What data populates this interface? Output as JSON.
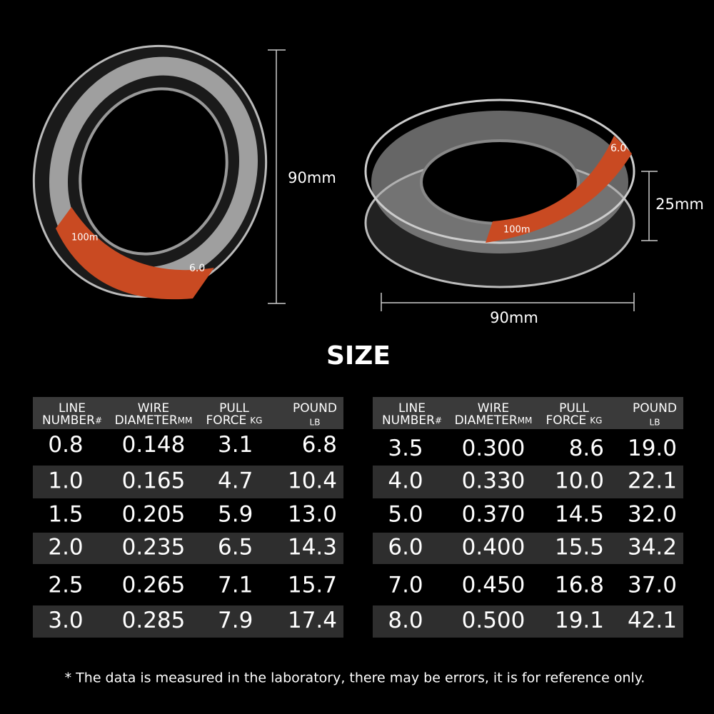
{
  "spools": [
    {
      "length": "100m",
      "number": "6.0"
    },
    {
      "length": "100m",
      "number": "6.0"
    }
  ],
  "dimensions": {
    "left_height": "90mm",
    "right_height": "25mm",
    "right_width": "90mm"
  },
  "title": "SIZE",
  "header": [
    {
      "top": "LINE",
      "bottom": "NUMBER",
      "unit": "#"
    },
    {
      "top": "WIRE",
      "bottom": "DIAMETER",
      "unit": "MM"
    },
    {
      "top": "PULL",
      "bottom": "FORCE",
      "unit": "KG"
    },
    {
      "top": "POUND",
      "unit": "LB"
    }
  ],
  "tables": [
    {
      "rows": [
        [
          "0.8",
          "0.148",
          "3.1",
          "6.8"
        ],
        [
          "1.0",
          "0.165",
          "4.7",
          "10.4"
        ],
        [
          "1.5",
          "0.205",
          "5.9",
          "13.0"
        ],
        [
          "2.0",
          "0.235",
          "6.5",
          "14.3"
        ],
        [
          "2.5",
          "0.265",
          "7.1",
          "15.7"
        ],
        [
          "3.0",
          "0.285",
          "7.9",
          "17.4"
        ]
      ]
    },
    {
      "rows": [
        [
          "3.5",
          "0.300",
          "8.6",
          "19.0"
        ],
        [
          "4.0",
          "0.330",
          "10.0",
          "22.1"
        ],
        [
          "5.0",
          "0.370",
          "14.5",
          "32.0"
        ],
        [
          "6.0",
          "0.400",
          "15.5",
          "34.2"
        ],
        [
          "7.0",
          "0.450",
          "16.8",
          "37.0"
        ],
        [
          "8.0",
          "0.500",
          "19.1",
          "42.1"
        ]
      ]
    }
  ],
  "footnote": "* The data is measured in the laboratory, there may be errors, it is for reference only."
}
